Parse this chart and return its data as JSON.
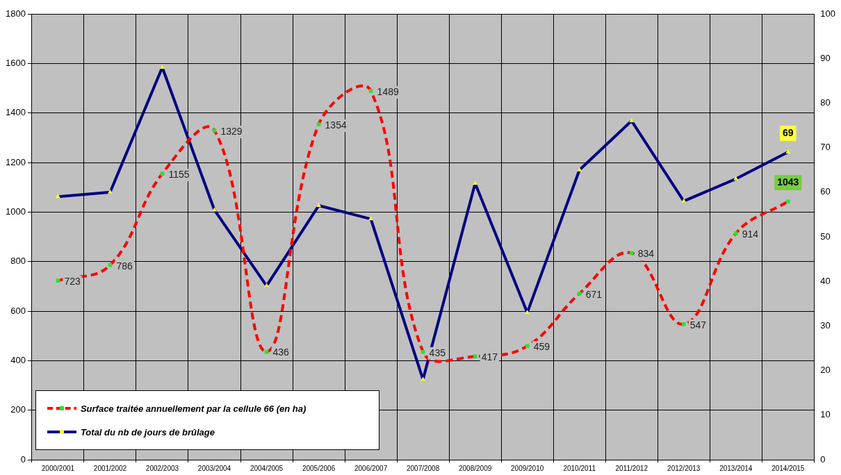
{
  "chart_data": {
    "type": "line",
    "categories": [
      "2000/2001",
      "2001/2002",
      "2002/2003",
      "2003/2004",
      "2004/2005",
      "2005/2006",
      "2006/2007",
      "2007/2008",
      "2008/2009",
      "2009/2010",
      "2010/2011",
      "2011/2012",
      "2012/2013",
      "2013/2014",
      "2014/2015"
    ],
    "series": [
      {
        "name": "Surface  traitée annuellement par la cellule 66  (en ha)",
        "color": "#ff0000",
        "line_style": "dashed",
        "marker": "square",
        "values": [
          723,
          786,
          1155,
          1329,
          436,
          1354,
          1489,
          435,
          417,
          459,
          671,
          834,
          547,
          914,
          1043
        ],
        "value_labels": [
          "723",
          "786",
          "1155",
          "1329",
          "436",
          "1354",
          "1489",
          "435",
          "417",
          "459",
          "671",
          "834",
          "547",
          "914",
          "1043"
        ]
      },
      {
        "name": "Total du  nb de jours de brûlage",
        "color": "#000080",
        "line_style": "solid",
        "marker": "triangle",
        "axis": "y2",
        "values": [
          59,
          60,
          88,
          56,
          39,
          57,
          54,
          18,
          62,
          33,
          65,
          76,
          58,
          63,
          69
        ],
        "value_labels": [
          null,
          null,
          null,
          null,
          null,
          null,
          null,
          null,
          null,
          null,
          null,
          null,
          null,
          null,
          "69"
        ]
      }
    ],
    "ylim": [
      0,
      1800
    ],
    "yticks": [
      0,
      200,
      400,
      600,
      800,
      1000,
      1200,
      1400,
      1600,
      1800
    ],
    "y2lim": [
      0,
      100
    ],
    "y2ticks": [
      0,
      10,
      20,
      30,
      40,
      50,
      60,
      70,
      80,
      90,
      100
    ],
    "grid": true,
    "legend": "bottom left"
  }
}
